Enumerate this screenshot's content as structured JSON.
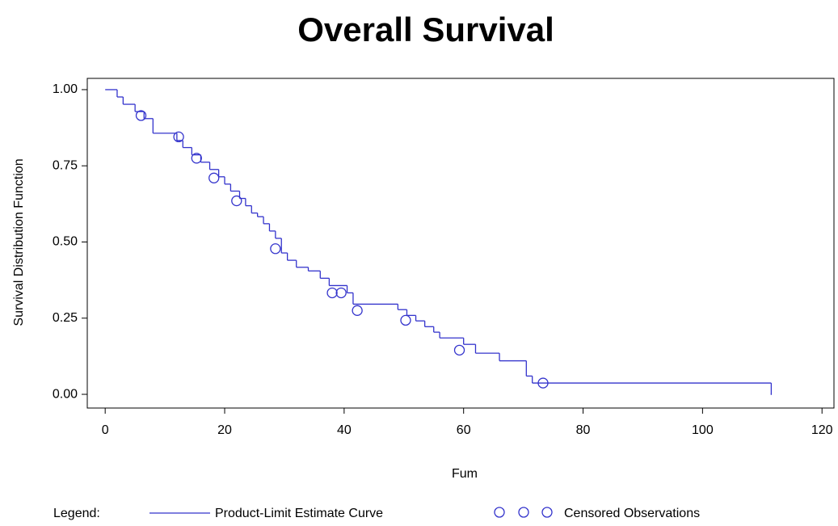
{
  "chart_data": {
    "type": "step",
    "title": "Overall Survival",
    "x_label": "Fum",
    "y_label": "Survival Distribution Function",
    "legend_title": "Legend:",
    "xlim": [
      -3,
      122
    ],
    "ylim": [
      -0.045,
      1.037
    ],
    "xticks": [
      0,
      20,
      40,
      60,
      80,
      100,
      120
    ],
    "yticks": [
      {
        "value": 0,
        "label": "0.00"
      },
      {
        "value": 0.25,
        "label": "0.25"
      },
      {
        "value": 0.5,
        "label": "0.50"
      },
      {
        "value": 0.75,
        "label": "0.75"
      },
      {
        "value": 1,
        "label": "1.00"
      }
    ],
    "series": [
      {
        "name": "Product-Limit Estimate Curve",
        "type": "step",
        "color": "#3333cc",
        "x": [
          0,
          2,
          3,
          5,
          6.5,
          8,
          12,
          13,
          14.5,
          16,
          17.5,
          19,
          20,
          21,
          22.5,
          23.5,
          24.5,
          25.5,
          26.5,
          27.5,
          28.5,
          29.5,
          30.5,
          32,
          34,
          36,
          37.5,
          40.5,
          41.5,
          49,
          50.5,
          52,
          53.5,
          55,
          56,
          60,
          62,
          66,
          70.5,
          71.5,
          111.5
        ],
        "values": [
          1.0,
          0.976,
          0.952,
          0.928,
          0.905,
          0.857,
          0.833,
          0.81,
          0.786,
          0.762,
          0.738,
          0.714,
          0.69,
          0.667,
          0.643,
          0.619,
          0.595,
          0.583,
          0.56,
          0.536,
          0.512,
          0.464,
          0.44,
          0.417,
          0.405,
          0.381,
          0.357,
          0.333,
          0.296,
          0.278,
          0.259,
          0.241,
          0.222,
          0.204,
          0.185,
          0.164,
          0.135,
          0.11,
          0.06,
          0.037,
          0
        ]
      },
      {
        "name": "Censored Observations",
        "type": "scatter",
        "color": "#3333cc",
        "x": [
          6,
          12.3,
          15.3,
          18.2,
          22,
          28.5,
          38,
          39.5,
          42.2,
          50.3,
          59.3,
          73.3
        ],
        "values": [
          0.915,
          0.845,
          0.775,
          0.71,
          0.635,
          0.478,
          0.333,
          0.333,
          0.275,
          0.243,
          0.145,
          0.037
        ]
      }
    ]
  }
}
